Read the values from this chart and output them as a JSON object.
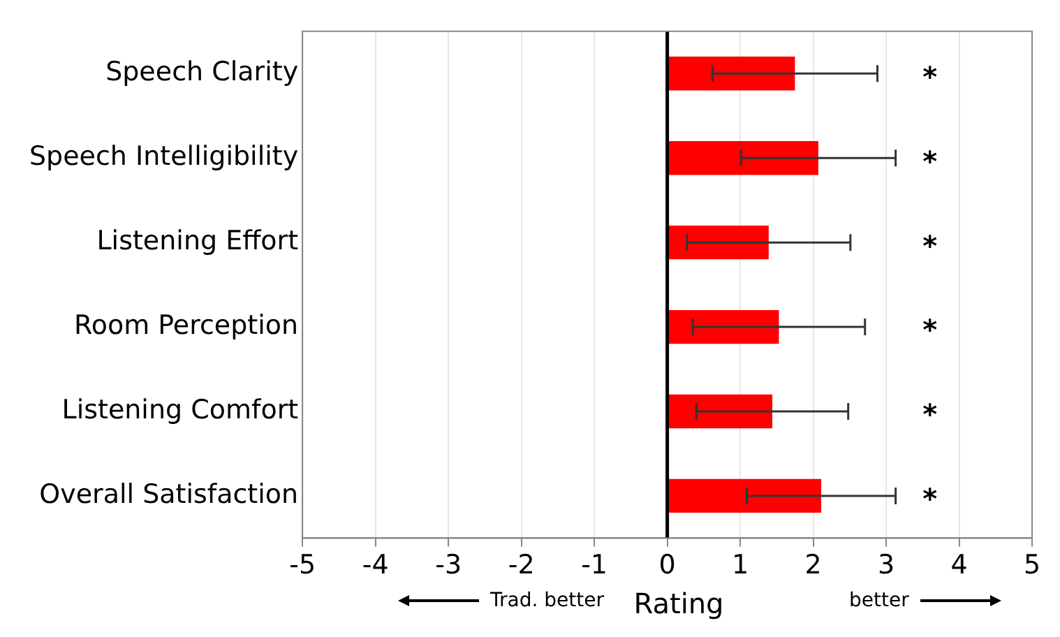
{
  "chart_data": {
    "type": "bar",
    "orientation": "horizontal",
    "xlabel": "Rating",
    "categories": [
      "Speech Clarity",
      "Speech Intelligibility",
      "Listening Effort",
      "Room Perception",
      "Listening Comfort",
      "Overall Satisfaction"
    ],
    "values": [
      1.75,
      2.07,
      1.39,
      1.53,
      1.44,
      2.11
    ],
    "errors": [
      1.13,
      1.06,
      1.12,
      1.18,
      1.04,
      1.02
    ],
    "color": "#ff0000",
    "xlim": [
      -5,
      5
    ],
    "xticks": [
      -5,
      -4,
      -3,
      -2,
      -1,
      0,
      1,
      2,
      3,
      4,
      5
    ],
    "grid": "x",
    "legend": false,
    "ref_lines": [
      {
        "axis": "x",
        "value": 0,
        "color": "#000000"
      }
    ],
    "annotations": [
      "*",
      "*",
      "*",
      "*",
      "*",
      "*",
      "Trad. better",
      "better"
    ]
  }
}
